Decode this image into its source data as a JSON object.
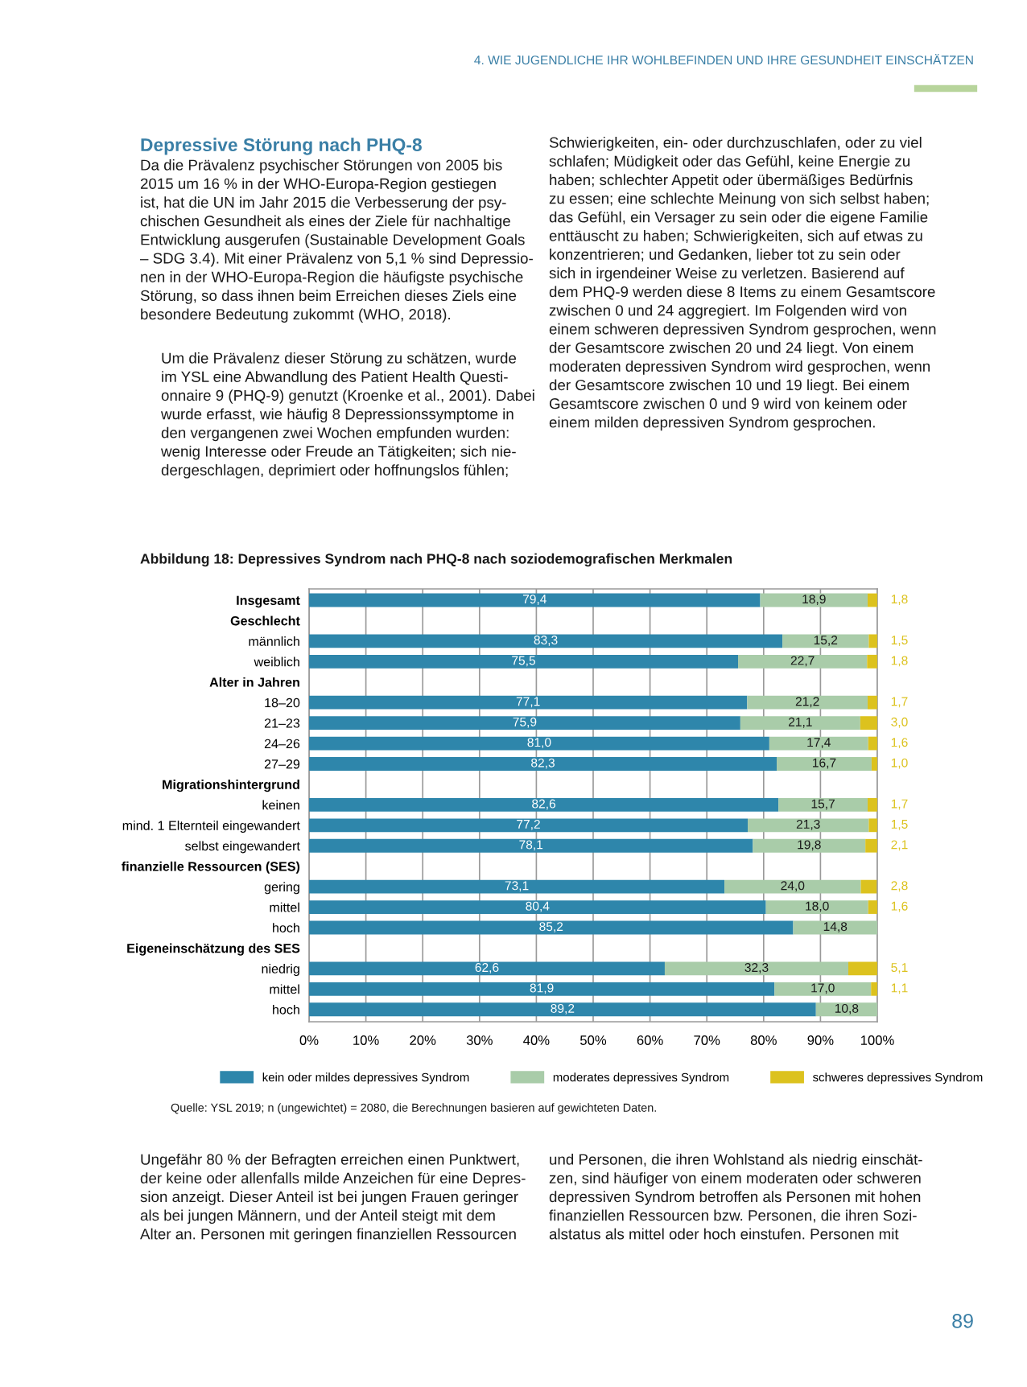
{
  "chart_data": {
    "type": "bar",
    "orientation": "horizontal",
    "stacked": true,
    "title": "Abbildung 18: Depressives Syndrom nach PHQ-8 nach soziodemografischen Merkmalen",
    "categories": [
      "Insgesamt",
      "Geschlecht",
      "männlich",
      "weiblich",
      "Alter in Jahren",
      "18–20",
      "21–23",
      "24–26",
      "27–29",
      "Migrationshintergrund",
      "keinen",
      "mind. 1 Elternteil eingewandert",
      "selbst eingewandert",
      "finanzielle Ressourcen (SES)",
      "gering",
      "mittel",
      "hoch",
      "Eigeneinschätzung des SES",
      "niedrig",
      "mittel",
      "hoch"
    ],
    "series": [
      {
        "name": "kein oder mildes depressives Syndrom",
        "color": "#2e86ab",
        "values": [
          79.4,
          null,
          83.3,
          75.5,
          null,
          77.1,
          75.9,
          81.0,
          82.3,
          null,
          82.6,
          77.2,
          78.1,
          null,
          73.1,
          80.4,
          85.2,
          null,
          62.6,
          81.9,
          89.2
        ],
        "value_labels": [
          "79,4",
          null,
          "83,3",
          "75,5",
          null,
          "77,1",
          "75,9",
          "81,0",
          "82,3",
          null,
          "82,6",
          "77,2",
          "78,1",
          null,
          "73,1",
          "80,4",
          "85,2",
          null,
          "62,6",
          "81,9",
          "89,2"
        ]
      },
      {
        "name": "moderates depressives Syndrom",
        "color": "#a9cca9",
        "values": [
          18.9,
          null,
          15.2,
          22.7,
          null,
          21.2,
          21.1,
          17.4,
          16.7,
          null,
          15.7,
          21.3,
          19.8,
          null,
          24.0,
          18.0,
          14.8,
          null,
          32.3,
          17.0,
          10.8
        ],
        "value_labels": [
          "18,9",
          null,
          "15,2",
          "22,7",
          null,
          "21,2",
          "21,1",
          "17,4",
          "16,7",
          null,
          "15,7",
          "21,3",
          "19,8",
          null,
          "24,0",
          "18,0",
          "14,8",
          null,
          "32,3",
          "17,0",
          "10,8"
        ]
      },
      {
        "name": "schweres depressives Syndrom",
        "color": "#dcc21e",
        "values": [
          1.8,
          null,
          1.5,
          1.8,
          null,
          1.7,
          3.0,
          1.6,
          1.0,
          null,
          1.7,
          1.5,
          2.1,
          null,
          2.8,
          1.6,
          null,
          null,
          5.1,
          1.1,
          null
        ],
        "value_labels": [
          "1,8",
          null,
          "1,5",
          "1,8",
          null,
          "1,7",
          "3,0",
          "1,6",
          "1,0",
          null,
          "1,7",
          "1,5",
          "2,1",
          null,
          "2,8",
          "1,6",
          null,
          null,
          "5,1",
          "1,1",
          null
        ]
      }
    ],
    "xlim": [
      0,
      100
    ],
    "xticks": [
      {
        "value": 0,
        "label": "0%"
      },
      {
        "value": 10,
        "label": "10%"
      },
      {
        "value": 20,
        "label": "20%"
      },
      {
        "value": 30,
        "label": "30%"
      },
      {
        "value": 40,
        "label": "40%"
      },
      {
        "value": 50,
        "label": "50%"
      },
      {
        "value": 60,
        "label": "60%"
      },
      {
        "value": 70,
        "label": "70%"
      },
      {
        "value": 80,
        "label": "80%"
      },
      {
        "value": 90,
        "label": "90%"
      },
      {
        "value": 100,
        "label": "100%"
      }
    ],
    "grid": "x",
    "legend": "bottom",
    "annotations": [
      "4. WIE JUGENDLICHE IHR WOHLBEFINDEN UND IHRE GESUNDHEIT EINSCHÄTZEN",
      "Depressive Störung nach PHQ-8",
      "Da die Prävalenz psychischer Störungen von 2005 bis\n2015 um 16 % in der WHO-Europa-Region gestiegen\nist, hat die UN im Jahr 2015 die Verbesserung der psy-\nchischen Gesundheit als eines der Ziele für nachhaltige\nEntwicklung ausgerufen (Sustainable Development Goals\n– SDG 3.4). Mit einer Prävalenz von 5,1 % sind Depressio-\nnen in der WHO-Europa-Region die häufigste psychische\nStörung, so dass ihnen beim Erreichen dieses Ziels eine\nbesondere Bedeutung zukommt (WHO, 2018).",
      "Um die Prävalenz dieser Störung zu schätzen, wurde\nim YSL eine Abwandlung des Patient Health Questi-\nonnaire 9 (PHQ-9) genutzt (Kroenke et al., 2001). Dabei\nwurde erfasst, wie häufig 8 Depressionssymptome in\nden vergangenen zwei Wochen empfunden wurden:\nwenig Interesse oder Freude an Tätigkeiten; sich nie-\ndergeschlagen, deprimiert oder hoffnungslos fühlen;",
      "Schwierigkeiten, ein- oder durchzuschlafen, oder zu viel\nschlafen; Müdigkeit oder das Gefühl, keine Energie zu\nhaben; schlechter Appetit oder übermäßiges Bedürfnis\nzu essen; eine schlechte Meinung von sich selbst haben;\ndas Gefühl, ein Versager zu sein oder die eigene Familie\nenttäuscht zu haben; Schwierigkeiten, sich auf etwas zu\nkonzentrieren; und Gedanken, lieber tot zu sein oder\nsich in irgendeiner Weise zu verletzen. Basierend auf\ndem PHQ-9 werden diese 8 Items zu einem Gesamtscore\nzwischen 0 und 24 aggregiert. Im Folgenden wird von\neinem schweren depressiven Syndrom gesprochen, wenn\nder Gesamtscore zwischen 20 und 24 liegt. Von einem\nmoderaten depressiven Syndrom wird gesprochen, wenn\nder Gesamtscore zwischen 10 und 19 liegt. Bei einem\nGesamtscore zwischen 0 und 9 wird von keinem oder\neinem milden depressiven Syndrom gesprochen.",
      "Quelle: YSL 2019; n (ungewichtet) = 2080, die Berechnungen basieren auf gewichteten Daten.",
      "Ungefähr 80 % der Befragten erreichen einen Punktwert,\nder keine oder allenfalls milde Anzeichen für eine Depres-\nsion anzeigt. Dieser Anteil ist bei jungen Frauen geringer\nals bei jungen Männern, und der Anteil steigt mit dem\nAlter an. Personen mit geringen finanziellen Ressourcen",
      "und Personen, die ihren Wohlstand als niedrig einschät-\nzen, sind häufiger von einem moderaten oder schweren\ndepressiven Syndrom betroffen als Personen mit hohen\nfinanziellen Ressourcen bzw. Personen, die ihren Sozi-\nalstatus als mittel oder hoch einstufen. Personen mit",
      "89"
    ]
  }
}
